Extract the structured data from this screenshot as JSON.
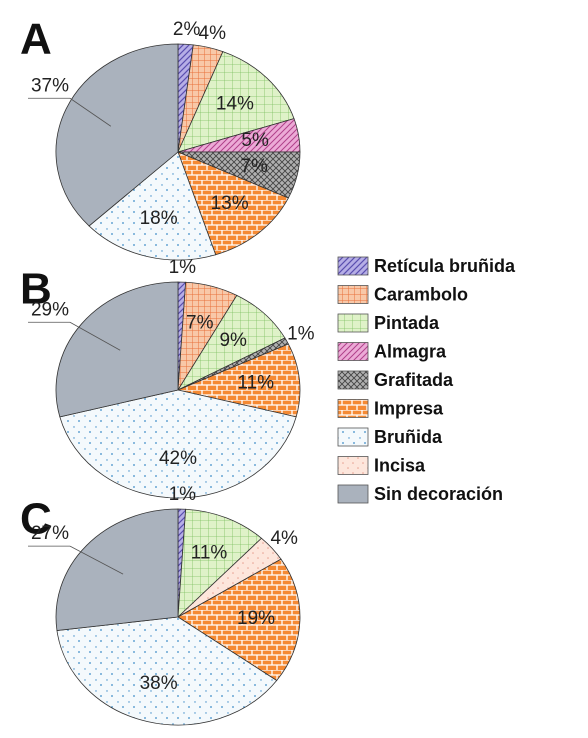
{
  "legend": {
    "categories": [
      "Retícula bruñida",
      "Carambolo",
      "Pintada",
      "Almagra",
      "Grafitada",
      "Impresa",
      "Bruñida",
      "Incisa",
      "Sin decoración"
    ],
    "colors": [
      "#b6aee6",
      "#f8c8a8",
      "#dff2c8",
      "#ecaad6",
      "#b0b0b0",
      "#f58a34",
      "#f4f9fc",
      "#fde6dc",
      "#aab2bd"
    ]
  },
  "chart_data": [
    {
      "type": "pie",
      "title": "A",
      "categories": [
        "Retícula bruñida",
        "Carambolo",
        "Pintada",
        "Almagra",
        "Grafitada",
        "Impresa",
        "Bruñida",
        "Sin decoración"
      ],
      "values": [
        2,
        4,
        14,
        5,
        7,
        13,
        18,
        37
      ],
      "value_labels": [
        "2%",
        "4%",
        "14%",
        "5%",
        "7%",
        "13%",
        "18%",
        "37%"
      ]
    },
    {
      "type": "pie",
      "title": "B",
      "categories": [
        "Retícula bruñida",
        "Carambolo",
        "Pintada",
        "Grafitada",
        "Impresa",
        "Bruñida",
        "Sin decoración"
      ],
      "values": [
        1,
        7,
        9,
        1,
        11,
        42,
        29
      ],
      "value_labels": [
        "1%",
        "7%",
        "9%",
        "1%",
        "11%",
        "42%",
        "29%"
      ]
    },
    {
      "type": "pie",
      "title": "C",
      "categories": [
        "Retícula bruñida",
        "Pintada",
        "Incisa",
        "Impresa",
        "Bruñida",
        "Sin decoración"
      ],
      "values": [
        1,
        11,
        4,
        19,
        38,
        27
      ],
      "value_labels": [
        "1%",
        "11%",
        "4%",
        "19%",
        "38%",
        "27%"
      ]
    }
  ]
}
